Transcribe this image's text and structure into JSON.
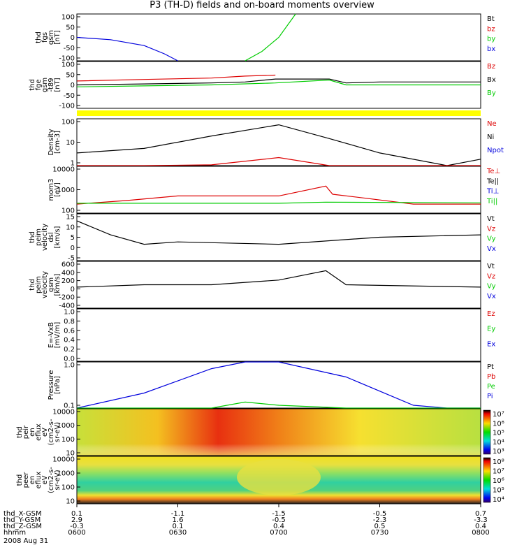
{
  "title": "P3 (TH-D) fields and on-board moments overview",
  "date": "2008 Aug 31",
  "colors": {
    "black": "#000000",
    "red": "#dd0000",
    "green": "#00cc00",
    "blue": "#0000dd",
    "yellow": "#ffff00"
  },
  "chart_data": [
    {
      "id": "fgs",
      "type": "line",
      "ylabel": [
        "thd",
        "fgs",
        "gsm",
        "[nT]"
      ],
      "yticks": [
        "100",
        "50",
        "0",
        "-50",
        "-100"
      ],
      "ylim": [
        -100,
        100
      ],
      "legend": [
        {
          "name": "Bt",
          "color": "#000000"
        },
        {
          "name": "bz",
          "color": "#dd0000"
        },
        {
          "name": "by",
          "color": "#00cc00"
        },
        {
          "name": "bx",
          "color": "#0000dd"
        }
      ],
      "series": [
        {
          "name": "bx",
          "x": [
            0,
            10,
            20,
            26,
            30
          ],
          "y": [
            0,
            -10,
            -35,
            -70,
            -100
          ]
        },
        {
          "name": "by",
          "x": [
            50,
            55,
            60,
            65
          ],
          "y": [
            -100,
            -60,
            0,
            100
          ]
        }
      ]
    },
    {
      "id": "fge",
      "type": "line",
      "ylabel": [
        "thd",
        "fge",
        "gsm",
        "-t89",
        "[nT]"
      ],
      "yticks": [
        "100",
        "50",
        "0",
        "-50",
        "-100"
      ],
      "ylim": [
        -120,
        120
      ],
      "legend": [
        {
          "name": "Bz",
          "color": "#dd0000"
        },
        {
          "name": "Bx",
          "color": "#000000"
        },
        {
          "name": "By",
          "color": "#00cc00"
        }
      ],
      "series": [
        {
          "name": "Bz",
          "x": [
            0,
            20,
            40,
            50,
            59
          ],
          "y": [
            20,
            28,
            35,
            45,
            50
          ]
        },
        {
          "name": "Bx",
          "x": [
            0,
            20,
            40,
            50,
            59,
            75,
            80,
            90,
            120
          ],
          "y": [
            0,
            5,
            10,
            15,
            30,
            30,
            10,
            15,
            15
          ]
        },
        {
          "name": "By",
          "x": [
            0,
            20,
            40,
            59,
            75,
            80,
            120
          ],
          "y": [
            -10,
            -5,
            0,
            10,
            25,
            0,
            0
          ]
        }
      ]
    },
    {
      "id": "density",
      "type": "line",
      "ylabel": [
        "Density",
        "[cm-3]"
      ],
      "yticks": [
        "100",
        "10",
        "1"
      ],
      "ylog": true,
      "legend": [
        {
          "name": "Ne",
          "color": "#dd0000"
        },
        {
          "name": "Ni",
          "color": "#000000"
        },
        {
          "name": "Npot",
          "color": "#0000dd"
        }
      ],
      "series": [
        {
          "name": "Ni",
          "x": [
            0,
            20,
            40,
            60,
            75,
            90,
            110,
            120
          ],
          "y": [
            3,
            5,
            20,
            70,
            15,
            3,
            0.7,
            1.5
          ]
        },
        {
          "name": "Ne",
          "x": [
            0,
            20,
            40,
            60,
            75,
            90,
            110,
            120
          ],
          "y": [
            0.3,
            0.4,
            0.8,
            1.8,
            0.2,
            0.3,
            0.35,
            0.4
          ]
        }
      ]
    },
    {
      "id": "mom",
      "type": "line",
      "ylabel": [
        "mom3",
        "[eV]"
      ],
      "yticks": [
        "10000",
        "1000",
        "100"
      ],
      "ylog": true,
      "legend": [
        {
          "name": "Te⊥",
          "color": "#dd0000"
        },
        {
          "name": "Te||",
          "color": "#000000"
        },
        {
          "name": "Ti⊥",
          "color": "#0000dd"
        },
        {
          "name": "Ti||",
          "color": "#00cc00"
        }
      ],
      "series": [
        {
          "name": "Te⊥",
          "x": [
            0,
            15,
            30,
            60,
            74,
            76,
            85,
            100,
            120
          ],
          "y": [
            200,
            300,
            500,
            500,
            1500,
            600,
            400,
            200,
            200
          ]
        },
        {
          "name": "Ti||",
          "x": [
            0,
            60,
            74,
            120
          ],
          "y": [
            220,
            220,
            250,
            230
          ]
        }
      ]
    },
    {
      "id": "velocity1",
      "type": "line",
      "ylabel": [
        "thd",
        "peim",
        "velocity",
        "dsl",
        "[km/s]"
      ],
      "yticks": [
        "15",
        "10",
        "5",
        "0",
        "-5"
      ],
      "ylim": [
        -5,
        15
      ],
      "legend": [
        {
          "name": "Vt",
          "color": "#000000"
        },
        {
          "name": "Vz",
          "color": "#dd0000"
        },
        {
          "name": "Vy",
          "color": "#00cc00"
        },
        {
          "name": "Vx",
          "color": "#0000dd"
        }
      ],
      "series": [
        {
          "name": "Vt",
          "x": [
            0,
            10,
            20,
            30,
            60,
            90,
            120
          ],
          "y": [
            12,
            6,
            2,
            3,
            2,
            5,
            6
          ]
        }
      ]
    },
    {
      "id": "velocity2",
      "type": "line",
      "ylabel": [
        "thd",
        "peim",
        "velocity",
        "gsm",
        "[km/s]"
      ],
      "yticks": [
        "600",
        "400",
        "200",
        "0",
        "-200",
        "-400"
      ],
      "ylim": [
        -400,
        600
      ],
      "legend": [
        {
          "name": "Vt",
          "color": "#000000"
        },
        {
          "name": "Vz",
          "color": "#dd0000"
        },
        {
          "name": "Vy",
          "color": "#00cc00"
        },
        {
          "name": "Vx",
          "color": "#0000dd"
        }
      ],
      "series": [
        {
          "name": "Vt",
          "x": [
            0,
            20,
            40,
            60,
            74,
            80,
            120
          ],
          "y": [
            50,
            100,
            100,
            200,
            400,
            100,
            50
          ]
        }
      ]
    },
    {
      "id": "evxb",
      "type": "line",
      "ylabel": [
        "E=-VxB",
        "[mV/m]"
      ],
      "yticks": [
        "1.0",
        "0.8",
        "0.6",
        "0.4",
        "0.2",
        "0.0"
      ],
      "ylim": [
        0,
        1
      ],
      "legend": [
        {
          "name": "Ez",
          "color": "#dd0000"
        },
        {
          "name": "Ey",
          "color": "#00cc00"
        },
        {
          "name": "Ex",
          "color": "#0000dd"
        }
      ],
      "series": []
    },
    {
      "id": "pressure",
      "type": "line",
      "ylabel": [
        "Pressure",
        "[nPa]"
      ],
      "yticks": [
        "1.0",
        "0.1"
      ],
      "ylog": true,
      "legend": [
        {
          "name": "Pt",
          "color": "#000000"
        },
        {
          "name": "Pb",
          "color": "#dd0000"
        },
        {
          "name": "Pe",
          "color": "#00cc00"
        },
        {
          "name": "Pi",
          "color": "#0000dd"
        }
      ],
      "series": [
        {
          "name": "Pi",
          "x": [
            0,
            20,
            40,
            50,
            60,
            80,
            100,
            110,
            120
          ],
          "y": [
            0.04,
            0.2,
            0.8,
            2,
            2,
            0.5,
            0.1,
            0.03,
            0.05
          ]
        },
        {
          "name": "Pe",
          "x": [
            0,
            20,
            40,
            50,
            60,
            80,
            100,
            120
          ],
          "y": [
            0.03,
            0.04,
            0.08,
            0.12,
            0.1,
            0.04,
            0.03,
            0.03
          ]
        }
      ]
    },
    {
      "id": "peir",
      "type": "heatmap",
      "ylabel": [
        "thd",
        "peir",
        "en",
        "eflux",
        "eV",
        "(cm2-s-",
        "sr-eV)"
      ],
      "yticks": [
        "10000",
        "1000",
        "100",
        "10"
      ],
      "colorbar": [
        "10⁷",
        "10⁶",
        "10⁵",
        "10⁴",
        "10³"
      ]
    },
    {
      "id": "peer",
      "type": "heatmap",
      "ylabel": [
        "thd",
        "peer",
        "en",
        "eflux",
        "eV",
        "(cm2-s-",
        "sr-eV)"
      ],
      "yticks": [
        "10000",
        "1000",
        "100",
        "10"
      ],
      "colorbar": [
        "10⁸",
        "10⁷",
        "10⁶",
        "10⁵",
        "10⁴"
      ]
    }
  ],
  "xaxis": {
    "rows": [
      {
        "label": "thd_X-GSM",
        "values": [
          "0.1",
          "-1.1",
          "-1.5",
          "-0.5",
          "0.7"
        ]
      },
      {
        "label": "thd_Y-GSM",
        "values": [
          "2.9",
          "1.6",
          "-0.5",
          "-2.3",
          "-3.3"
        ]
      },
      {
        "label": "thd_Z-GSM",
        "values": [
          "-0.3",
          "0.1",
          "0.4",
          "0.5",
          "0.4"
        ]
      },
      {
        "label": "hhmm",
        "values": [
          "0600",
          "0630",
          "0700",
          "0730",
          "0800"
        ]
      }
    ]
  }
}
